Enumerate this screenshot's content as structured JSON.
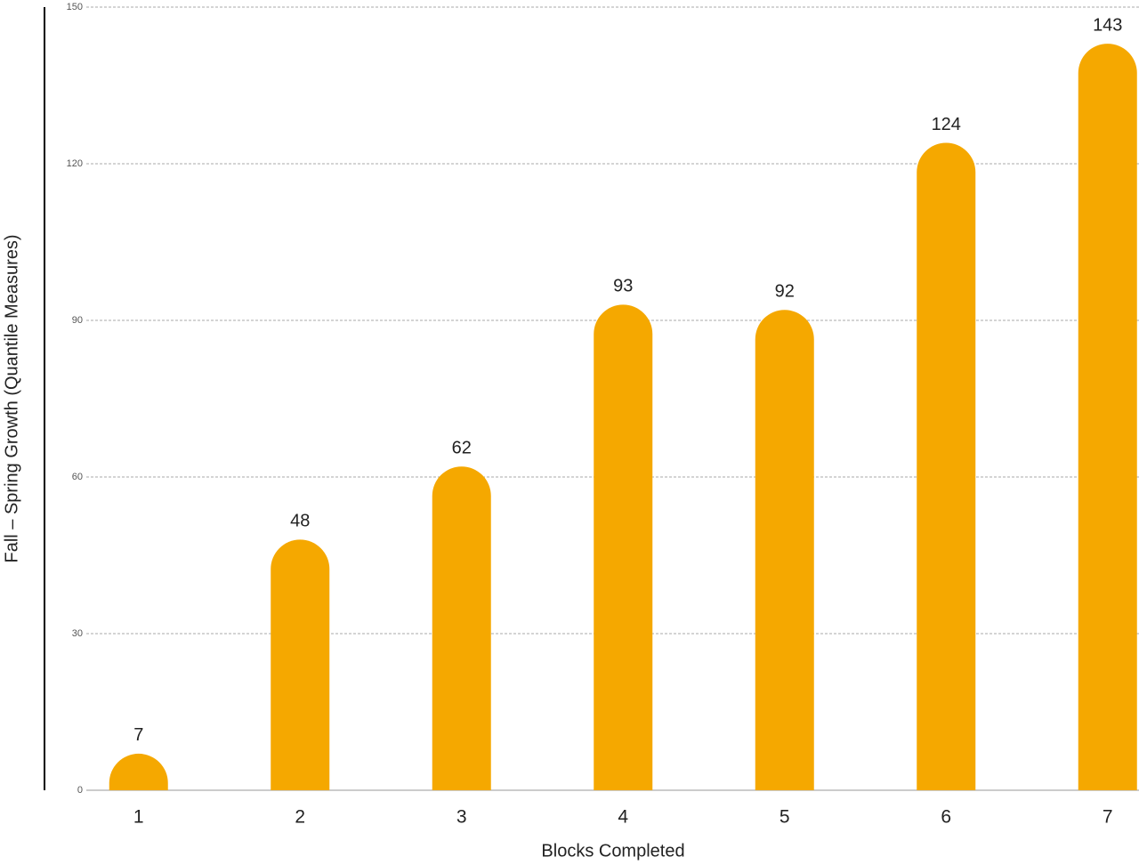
{
  "chart_data": {
    "type": "bar",
    "x_label": "Blocks Completed",
    "y_label": "Fall – Spring Growth (Quantile Measures)",
    "categories": [
      "1",
      "2",
      "3",
      "4",
      "5",
      "6",
      "7"
    ],
    "values": [
      7,
      48,
      62,
      93,
      92,
      124,
      143
    ],
    "color": "#f5a800",
    "ylim": [
      0,
      150
    ],
    "yticks": [
      0,
      30,
      60,
      90,
      120,
      150
    ],
    "grid": true
  }
}
